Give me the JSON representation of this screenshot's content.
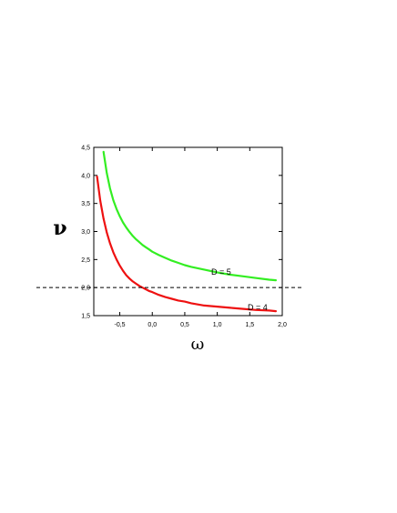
{
  "chart_data": {
    "type": "line",
    "xlabel": "ω",
    "ylabel": "ν",
    "xlim": [
      -0.9,
      2.0
    ],
    "ylim": [
      1.5,
      4.5
    ],
    "x_ticks": [
      "-0,5",
      "0,0",
      "0,5",
      "1,0",
      "1,5",
      "2,0"
    ],
    "x_tick_values": [
      -0.5,
      0.0,
      0.5,
      1.0,
      1.5,
      2.0
    ],
    "y_ticks": [
      "1,5",
      "2,0",
      "2,5",
      "3,0",
      "3,5",
      "4,0",
      "4,5"
    ],
    "y_tick_values": [
      1.5,
      2.0,
      2.5,
      3.0,
      3.5,
      4.0,
      4.5
    ],
    "reference_line": {
      "y": 2.0,
      "style": "dashed"
    },
    "series": [
      {
        "name": "D = 5",
        "color": "#33ee22",
        "x": [
          -0.75,
          -0.7,
          -0.65,
          -0.6,
          -0.55,
          -0.5,
          -0.45,
          -0.4,
          -0.35,
          -0.3,
          -0.25,
          -0.2,
          -0.15,
          -0.1,
          -0.05,
          0.0,
          0.1,
          0.2,
          0.3,
          0.4,
          0.5,
          0.6,
          0.8,
          1.0,
          1.2,
          1.4,
          1.6,
          1.8,
          1.9
        ],
        "values": [
          4.42,
          4.04,
          3.77,
          3.56,
          3.4,
          3.27,
          3.16,
          3.07,
          2.99,
          2.92,
          2.86,
          2.81,
          2.76,
          2.72,
          2.68,
          2.64,
          2.58,
          2.53,
          2.48,
          2.44,
          2.4,
          2.37,
          2.32,
          2.27,
          2.23,
          2.2,
          2.17,
          2.14,
          2.13
        ]
      },
      {
        "name": "D = 4",
        "color": "#ee1111",
        "x": [
          -0.85,
          -0.8,
          -0.75,
          -0.7,
          -0.65,
          -0.6,
          -0.55,
          -0.5,
          -0.45,
          -0.4,
          -0.35,
          -0.3,
          -0.25,
          -0.2,
          -0.15,
          -0.1,
          -0.05,
          0.0,
          0.1,
          0.2,
          0.3,
          0.4,
          0.5,
          0.6,
          0.8,
          1.0,
          1.2,
          1.4,
          1.6,
          1.8,
          1.9
        ],
        "values": [
          3.98,
          3.55,
          3.23,
          2.98,
          2.79,
          2.63,
          2.5,
          2.39,
          2.3,
          2.22,
          2.16,
          2.11,
          2.07,
          2.03,
          2.0,
          1.97,
          1.94,
          1.92,
          1.87,
          1.83,
          1.8,
          1.77,
          1.75,
          1.72,
          1.68,
          1.66,
          1.64,
          1.62,
          1.6,
          1.59,
          1.58
        ]
      }
    ],
    "annotations": [
      "D = 5",
      "D = 4"
    ]
  }
}
